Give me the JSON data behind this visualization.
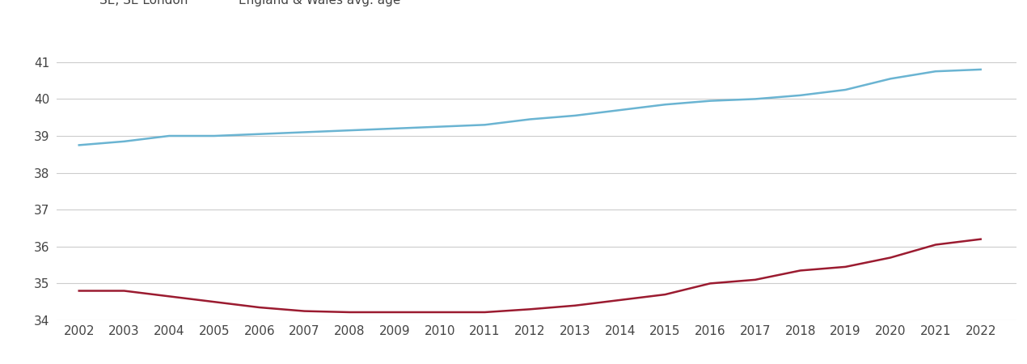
{
  "years": [
    2002,
    2003,
    2004,
    2005,
    2006,
    2007,
    2008,
    2009,
    2010,
    2011,
    2012,
    2013,
    2014,
    2015,
    2016,
    2017,
    2018,
    2019,
    2020,
    2021,
    2022
  ],
  "se_london": [
    34.8,
    34.8,
    34.65,
    34.5,
    34.35,
    34.25,
    34.22,
    34.22,
    34.22,
    34.22,
    34.3,
    34.4,
    34.55,
    34.7,
    35.0,
    35.1,
    35.35,
    35.45,
    35.7,
    36.05,
    36.2
  ],
  "england_wales": [
    38.75,
    38.85,
    39.0,
    39.0,
    39.05,
    39.1,
    39.15,
    39.2,
    39.25,
    39.3,
    39.45,
    39.55,
    39.7,
    39.85,
    39.95,
    40.0,
    40.1,
    40.25,
    40.55,
    40.75,
    40.8
  ],
  "se_london_color": "#9b1b30",
  "england_wales_color": "#6ab4d2",
  "ylim": [
    34,
    41.5
  ],
  "yticks": [
    34,
    35,
    36,
    37,
    38,
    39,
    40,
    41
  ],
  "background_color": "#ffffff",
  "grid_color": "#cccccc",
  "line_width": 1.8,
  "tick_fontsize": 11,
  "legend_fontsize": 11
}
